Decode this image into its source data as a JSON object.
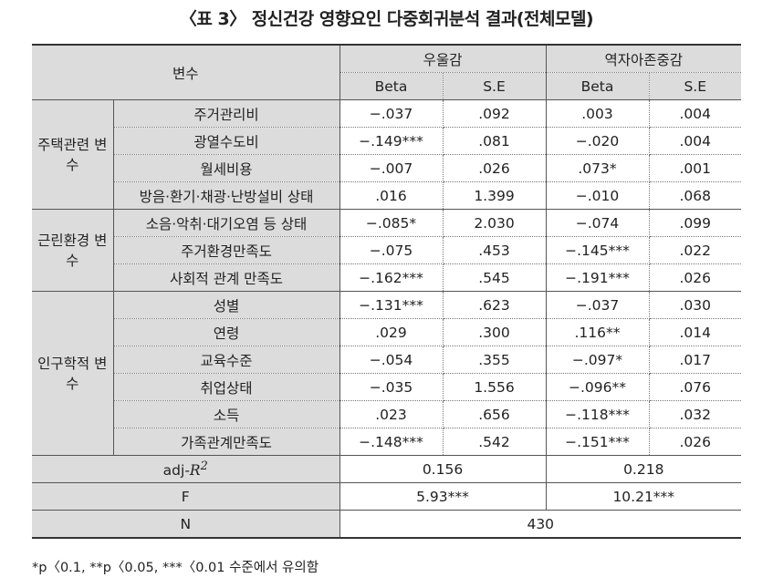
{
  "title": "〈표 3〉 정신건강 영향요인 다중회귀분석 결과(전체모델)",
  "header": {
    "variable": "변수",
    "depression": "우울감",
    "self_esteem": "역자아존중감",
    "beta": "Beta",
    "se": "S.E"
  },
  "groups": {
    "housing": "주택관련 변수",
    "neighborhood": "근린환경 변수",
    "demographic": "인구학적 변수"
  },
  "rows": [
    {
      "name": "주거관리비",
      "d_beta": "−.037",
      "d_se": ".092",
      "s_beta": ".003",
      "s_se": ".004"
    },
    {
      "name": "광열수도비",
      "d_beta": "−.149***",
      "d_se": ".081",
      "s_beta": "−.020",
      "s_se": ".004"
    },
    {
      "name": "월세비용",
      "d_beta": "−.007",
      "d_se": ".026",
      "s_beta": ".073*",
      "s_se": ".001"
    },
    {
      "name": "방음·환기·채광·난방설비 상태",
      "d_beta": ".016",
      "d_se": "1.399",
      "s_beta": "−.010",
      "s_se": ".068"
    },
    {
      "name": "소음·악취·대기오염 등 상태",
      "d_beta": "−.085*",
      "d_se": "2.030",
      "s_beta": "−.074",
      "s_se": ".099"
    },
    {
      "name": "주거환경만족도",
      "d_beta": "−.075",
      "d_se": ".453",
      "s_beta": "−.145***",
      "s_se": ".022"
    },
    {
      "name": "사회적 관계 만족도",
      "d_beta": "−.162***",
      "d_se": ".545",
      "s_beta": "−.191***",
      "s_se": ".026"
    },
    {
      "name": "성별",
      "d_beta": "−.131***",
      "d_se": ".623",
      "s_beta": "−.037",
      "s_se": ".030"
    },
    {
      "name": "연령",
      "d_beta": ".029",
      "d_se": ".300",
      "s_beta": ".116**",
      "s_se": ".014"
    },
    {
      "name": "교육수준",
      "d_beta": "−.054",
      "d_se": ".355",
      "s_beta": "−.097*",
      "s_se": ".017"
    },
    {
      "name": "취업상태",
      "d_beta": "−.035",
      "d_se": "1.556",
      "s_beta": "−.096**",
      "s_se": ".076"
    },
    {
      "name": "소득",
      "d_beta": ".023",
      "d_se": ".656",
      "s_beta": "−.118***",
      "s_se": ".032"
    },
    {
      "name": "가족관계만족도",
      "d_beta": "−.148***",
      "d_se": ".542",
      "s_beta": "−.151***",
      "s_se": ".026"
    }
  ],
  "summary": {
    "adj_prefix": "adj-",
    "adj_r": "R",
    "adj_exp": "2",
    "adj_depression": "0.156",
    "adj_self_esteem": "0.218",
    "f_label": "F",
    "f_depression": "5.93***",
    "f_self_esteem": "10.21***",
    "n_label": "N",
    "n_value": "430"
  },
  "note": "*p〈0.1, **p〈0.05, ***〈0.01 수준에서 유의함"
}
